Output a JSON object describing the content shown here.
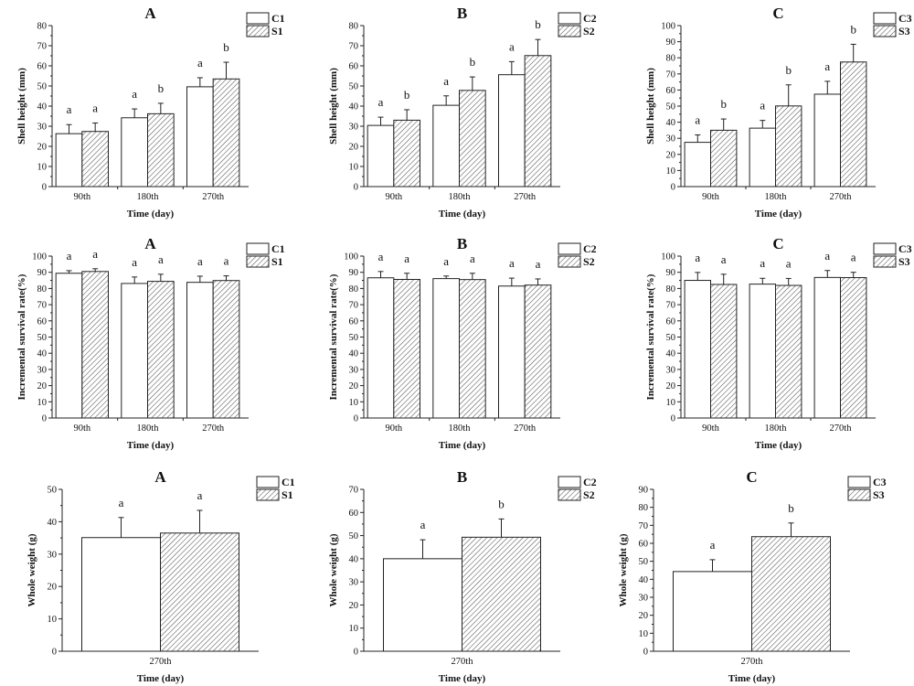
{
  "figure": {
    "rows": [
      "Shell height",
      "Incremental survival rate",
      "Whole weight"
    ]
  },
  "chart_data": [
    {
      "type": "bar",
      "panel": "A",
      "title": "A",
      "xlabel": "Time (day)",
      "ylabel": "Shell height (mm)",
      "categories": [
        "90th",
        "180th",
        "270th"
      ],
      "ylim": [
        0,
        80
      ],
      "yticks": [
        0,
        10,
        20,
        30,
        40,
        50,
        60,
        70,
        80
      ],
      "legend_position": "top-right",
      "grid": false,
      "series": [
        {
          "name": "C1",
          "pattern": "open",
          "values": [
            26.3,
            34.2,
            49.6
          ],
          "errors": [
            4.5,
            4.4,
            4.5
          ],
          "letters": [
            "a",
            "a",
            "a"
          ]
        },
        {
          "name": "S1",
          "pattern": "hatched",
          "values": [
            27.4,
            36.2,
            53.5
          ],
          "errors": [
            4.2,
            5.2,
            8.3
          ],
          "letters": [
            "a",
            "b",
            "b"
          ]
        }
      ]
    },
    {
      "type": "bar",
      "panel": "B",
      "title": "B",
      "xlabel": "Time (day)",
      "ylabel": "Shell height (mm)",
      "categories": [
        "90th",
        "180th",
        "270th"
      ],
      "ylim": [
        0,
        80
      ],
      "yticks": [
        0,
        10,
        20,
        30,
        40,
        50,
        60,
        70,
        80
      ],
      "legend_position": "top-right",
      "grid": false,
      "series": [
        {
          "name": "C2",
          "pattern": "open",
          "values": [
            30.4,
            40.4,
            55.6
          ],
          "errors": [
            4.1,
            4.7,
            6.5
          ],
          "letters": [
            "a",
            "a",
            "a"
          ]
        },
        {
          "name": "S2",
          "pattern": "hatched",
          "values": [
            33.0,
            47.8,
            65.1
          ],
          "errors": [
            5.2,
            6.7,
            8.0
          ],
          "letters": [
            "b",
            "b",
            "b"
          ]
        }
      ]
    },
    {
      "type": "bar",
      "panel": "C",
      "title": "C",
      "xlabel": "Time (day)",
      "ylabel": "Shell height (mm)",
      "categories": [
        "90th",
        "180th",
        "270th"
      ],
      "ylim": [
        0,
        100
      ],
      "yticks": [
        0,
        10,
        20,
        30,
        40,
        50,
        60,
        70,
        80,
        90,
        100
      ],
      "legend_position": "top-right",
      "grid": false,
      "series": [
        {
          "name": "C3",
          "pattern": "open",
          "values": [
            27.5,
            36.3,
            57.4
          ],
          "errors": [
            4.6,
            4.8,
            8.0
          ],
          "letters": [
            "a",
            "a",
            "a"
          ]
        },
        {
          "name": "S3",
          "pattern": "hatched",
          "values": [
            35.0,
            50.1,
            77.4
          ],
          "errors": [
            7.0,
            13.1,
            11.0
          ],
          "letters": [
            "b",
            "b",
            "b"
          ]
        }
      ]
    },
    {
      "type": "bar",
      "panel": "A",
      "title": "A",
      "xlabel": "Time (day)",
      "ylabel": "Incremental survival rate(%)",
      "categories": [
        "90th",
        "180th",
        "270th"
      ],
      "ylim": [
        0,
        100
      ],
      "yticks": [
        0,
        10,
        20,
        30,
        40,
        50,
        60,
        70,
        80,
        90,
        100
      ],
      "legend_position": "top-right",
      "grid": false,
      "series": [
        {
          "name": "C1",
          "pattern": "open",
          "values": [
            89.4,
            83.1,
            83.8
          ],
          "errors": [
            1.6,
            4.0,
            3.8
          ],
          "letters": [
            "a",
            "a",
            "a"
          ]
        },
        {
          "name": "S1",
          "pattern": "hatched",
          "values": [
            90.5,
            84.4,
            84.9
          ],
          "errors": [
            1.7,
            4.4,
            2.9
          ],
          "letters": [
            "a",
            "a",
            "a"
          ]
        }
      ]
    },
    {
      "type": "bar",
      "panel": "B",
      "title": "B",
      "xlabel": "Time (day)",
      "ylabel": "Incremental survival rate(%)",
      "categories": [
        "90th",
        "180th",
        "270th"
      ],
      "ylim": [
        0,
        100
      ],
      "yticks": [
        0,
        10,
        20,
        30,
        40,
        50,
        60,
        70,
        80,
        90,
        100
      ],
      "legend_position": "top-right",
      "grid": false,
      "series": [
        {
          "name": "C2",
          "pattern": "open",
          "values": [
            86.6,
            86.1,
            81.5
          ],
          "errors": [
            3.9,
            1.6,
            4.9
          ],
          "letters": [
            "a",
            "a",
            "a"
          ]
        },
        {
          "name": "S2",
          "pattern": "hatched",
          "values": [
            85.6,
            85.5,
            82.1
          ],
          "errors": [
            3.8,
            3.9,
            3.8
          ],
          "letters": [
            "a",
            "a",
            "a"
          ]
        }
      ]
    },
    {
      "type": "bar",
      "panel": "C",
      "title": "C",
      "xlabel": "Time (day)",
      "ylabel": "Incremental survival rate(%)",
      "categories": [
        "90th",
        "180th",
        "270th"
      ],
      "ylim": [
        0,
        100
      ],
      "yticks": [
        0,
        10,
        20,
        30,
        40,
        50,
        60,
        70,
        80,
        90,
        100
      ],
      "legend_position": "top-right",
      "grid": false,
      "series": [
        {
          "name": "C3",
          "pattern": "open",
          "values": [
            85.0,
            82.7,
            86.8
          ],
          "errors": [
            4.9,
            3.6,
            4.3
          ],
          "letters": [
            "a",
            "a",
            "a"
          ]
        },
        {
          "name": "S3",
          "pattern": "hatched",
          "values": [
            82.5,
            81.9,
            86.7
          ],
          "errors": [
            6.3,
            4.3,
            3.3
          ],
          "letters": [
            "a",
            "a",
            "a"
          ]
        }
      ]
    },
    {
      "type": "bar",
      "panel": "A",
      "title": "A",
      "xlabel": "Time (day)",
      "ylabel": "Whole weight (g)",
      "categories": [
        "270th"
      ],
      "ylim": [
        0,
        50
      ],
      "yticks": [
        0,
        10,
        20,
        30,
        40,
        50
      ],
      "legend_position": "top-right",
      "grid": false,
      "series": [
        {
          "name": "C1",
          "pattern": "open",
          "values": [
            35.1
          ],
          "errors": [
            6.2
          ],
          "letters": [
            "a"
          ]
        },
        {
          "name": "S1",
          "pattern": "hatched",
          "values": [
            36.5
          ],
          "errors": [
            7.0
          ],
          "letters": [
            "a"
          ]
        }
      ]
    },
    {
      "type": "bar",
      "panel": "B",
      "title": "B",
      "xlabel": "Time (day)",
      "ylabel": "Whole weight (g)",
      "categories": [
        "270th"
      ],
      "ylim": [
        0,
        70
      ],
      "yticks": [
        0,
        10,
        20,
        30,
        40,
        50,
        60,
        70
      ],
      "legend_position": "top-right",
      "grid": false,
      "series": [
        {
          "name": "C2",
          "pattern": "open",
          "values": [
            40.0
          ],
          "errors": [
            8.2
          ],
          "letters": [
            "a"
          ]
        },
        {
          "name": "S2",
          "pattern": "hatched",
          "values": [
            49.3
          ],
          "errors": [
            7.9
          ],
          "letters": [
            "b"
          ]
        }
      ]
    },
    {
      "type": "bar",
      "panel": "C",
      "title": "C",
      "xlabel": "Time (day)",
      "ylabel": "Whole weight (g)",
      "categories": [
        "270th"
      ],
      "ylim": [
        0,
        90
      ],
      "yticks": [
        0,
        10,
        20,
        30,
        40,
        50,
        60,
        70,
        80,
        90
      ],
      "legend_position": "top-right",
      "grid": false,
      "series": [
        {
          "name": "C3",
          "pattern": "open",
          "values": [
            44.3
          ],
          "errors": [
            6.6
          ],
          "letters": [
            "a"
          ]
        },
        {
          "name": "S3",
          "pattern": "hatched",
          "values": [
            63.7
          ],
          "errors": [
            7.6
          ],
          "letters": [
            "b"
          ]
        }
      ]
    }
  ]
}
